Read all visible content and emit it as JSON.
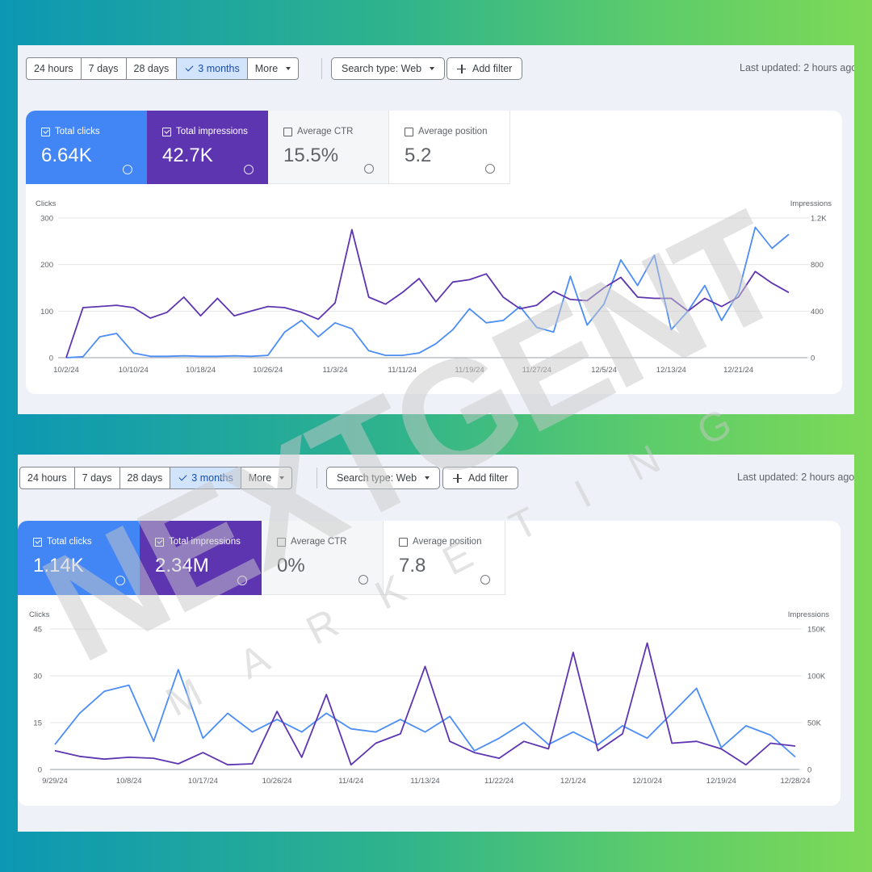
{
  "panels": [
    {
      "toolbar": {
        "ranges": [
          "24 hours",
          "7 days",
          "28 days",
          "3 months"
        ],
        "selected": 3,
        "more": "More",
        "search_type": "Search type: Web",
        "add_filter": "Add filter",
        "last_updated": "Last updated: 2 hours ago"
      },
      "metrics": [
        {
          "label": "Total clicks",
          "value": "6.64K",
          "checked": true,
          "color": "#4285f4"
        },
        {
          "label": "Total impressions",
          "value": "42.7K",
          "checked": true,
          "color": "#5e35b1"
        },
        {
          "label": "Average CTR",
          "value": "15.5%",
          "checked": false
        },
        {
          "label": "Average position",
          "value": "5.2",
          "checked": false
        }
      ],
      "chart": {
        "type": "line",
        "y_label": "Clicks",
        "y2_label": "Impressions",
        "categories": [
          "10/2/24",
          null,
          null,
          null,
          "10/10/24",
          null,
          null,
          null,
          "10/18/24",
          null,
          null,
          null,
          "10/26/24",
          null,
          null,
          null,
          "11/3/24",
          null,
          null,
          null,
          "11/11/24",
          null,
          null,
          null,
          "11/19/24",
          null,
          null,
          null,
          "11/27/24",
          null,
          null,
          null,
          "12/5/24",
          null,
          null,
          null,
          "12/13/24",
          null,
          null,
          null,
          "12/21/24",
          null,
          null,
          null
        ],
        "series": [
          {
            "color": "#4c8df6",
            "values": [
              0,
              2,
              45,
              52,
              10,
              3,
              3,
              4,
              3,
              3,
              4,
              3,
              5,
              55,
              80,
              45,
              75,
              62,
              15,
              5,
              5,
              10,
              30,
              60,
              105,
              75,
              80,
              110,
              65,
              55,
              175,
              70,
              115,
              210,
              155,
              220,
              60,
              100,
              155,
              80,
              140,
              280,
              235,
              265
            ]
          },
          {
            "color": "#5e35b1",
            "axis": "y2",
            "values": [
              0,
              430,
              440,
              450,
              430,
              340,
              390,
              520,
              360,
              510,
              360,
              400,
              440,
              430,
              390,
              330,
              470,
              1100,
              520,
              460,
              560,
              680,
              480,
              650,
              670,
              720,
              520,
              420,
              450,
              570,
              500,
              490,
              600,
              690,
              520,
              510,
              510,
              400,
              510,
              440,
              520,
              740,
              640,
              560
            ]
          }
        ],
        "ylim": [
          0,
          300
        ],
        "yticks": [
          0,
          100,
          200,
          300
        ],
        "y2lim": [
          0,
          1200
        ],
        "y2ticks": [
          0,
          400,
          800,
          {
            "value": 1200,
            "label": "1.2K"
          }
        ],
        "grid": true
      }
    },
    {
      "toolbar": {
        "ranges": [
          "24 hours",
          "7 days",
          "28 days",
          "3 months"
        ],
        "selected": 3,
        "more": "More",
        "search_type": "Search type: Web",
        "add_filter": "Add filter",
        "last_updated": "Last updated: 2 hours ago"
      },
      "metrics": [
        {
          "label": "Total clicks",
          "value": "1.14K",
          "checked": true,
          "color": "#4285f4"
        },
        {
          "label": "Total impressions",
          "value": "2.34M",
          "checked": true,
          "color": "#5e35b1"
        },
        {
          "label": "Average CTR",
          "value": "0%",
          "checked": false
        },
        {
          "label": "Average position",
          "value": "7.8",
          "checked": false
        }
      ],
      "chart": {
        "type": "line",
        "y_label": "Clicks",
        "y2_label": "Impressions",
        "categories": [
          "9/29/24",
          null,
          null,
          "10/8/24",
          null,
          null,
          "10/17/24",
          null,
          null,
          "10/26/24",
          null,
          null,
          "11/4/24",
          null,
          null,
          "11/13/24",
          null,
          null,
          "11/22/24",
          null,
          null,
          "12/1/24",
          null,
          null,
          "12/10/24",
          null,
          null,
          "12/19/24",
          null,
          null,
          "12/28/24"
        ],
        "series": [
          {
            "color": "#4c8df6",
            "values": [
              8,
              18,
              25,
              27,
              9,
              32,
              10,
              18,
              12,
              16,
              12,
              18,
              13,
              12,
              16,
              12,
              17,
              6,
              10,
              15,
              8,
              12,
              8,
              14,
              10,
              18,
              26,
              7,
              14,
              11,
              4
            ]
          },
          {
            "color": "#5e35b1",
            "axis": "y2",
            "values": [
              20000,
              14000,
              11000,
              13000,
              12000,
              6000,
              18000,
              5000,
              6000,
              62000,
              13000,
              80000,
              5000,
              28000,
              38000,
              110000,
              30000,
              18000,
              12000,
              30000,
              22000,
              125000,
              20000,
              38000,
              135000,
              28000,
              30000,
              22000,
              5000,
              28000,
              25000
            ]
          }
        ],
        "ylim": [
          0,
          45
        ],
        "yticks": [
          0,
          15,
          30,
          45
        ],
        "y2lim": [
          0,
          150000
        ],
        "y2ticks": [
          0,
          {
            "value": 50000,
            "label": "50K"
          },
          {
            "value": 100000,
            "label": "100K"
          },
          {
            "value": 150000,
            "label": "150K"
          }
        ],
        "grid": true
      }
    }
  ],
  "watermark": {
    "brand": "NEXTGENT",
    "tagline": "MARKETING"
  }
}
